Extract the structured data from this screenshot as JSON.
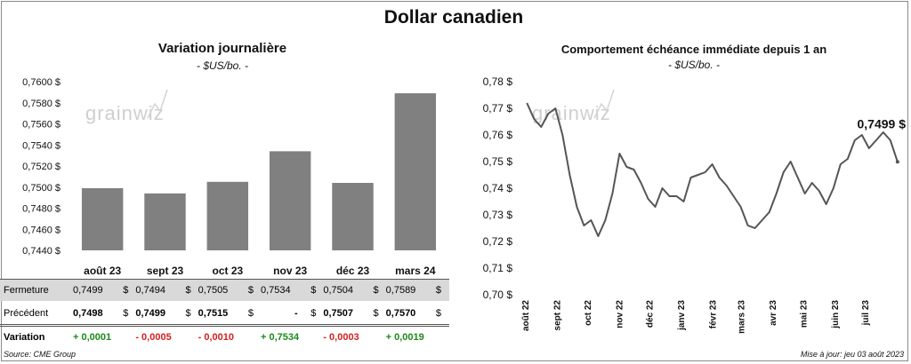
{
  "main_title": "Dollar canadien",
  "left_chart": {
    "title": "Variation  journalière",
    "subtitle": "- $US/bo. -",
    "watermark": "grainwiz",
    "bar_color": "#808080"
  },
  "right_chart": {
    "title": "Comportement échéance immédiate depuis 1 an",
    "subtitle": "- $US/bo. -",
    "last_label": "0,7499 $",
    "watermark": "grainwiz",
    "line_color": "#555555"
  },
  "table": {
    "fermeture_label": "Fermeture",
    "precedent_label": "Précédent",
    "variation_label": "Variation",
    "currency": "$",
    "fermeture": [
      "0,7499",
      "0,7494",
      "0,7505",
      "0,7534",
      "0,7504",
      "0,7589"
    ],
    "precedent": [
      "0,7498",
      "0,7499",
      "0,7515",
      "-",
      "0,7507",
      "0,7570"
    ],
    "variation": [
      "+ 0,0001",
      "- 0,0005",
      "- 0,0010",
      "+ 0,7534",
      "- 0,0003",
      "+ 0,0019"
    ]
  },
  "footer": {
    "source": "Source: CME Group",
    "updated": "Mise à jour: jeu 03 août 2023"
  },
  "chart_data": [
    {
      "type": "bar",
      "title": "Variation  journalière",
      "subtitle": "- $US/bo. -",
      "categories": [
        "août 23",
        "sept 23",
        "oct 23",
        "nov 23",
        "déc 23",
        "mars 24"
      ],
      "values": [
        0.7499,
        0.7494,
        0.7505,
        0.7534,
        0.7504,
        0.7589
      ],
      "ylim": [
        0.744,
        0.76
      ],
      "yticks": [
        "0,7440 $",
        "0,7460 $",
        "0,7480 $",
        "0,7500 $",
        "0,7520 $",
        "0,7540 $",
        "0,7560 $",
        "0,7580 $",
        "0,7600 $"
      ],
      "grid": false,
      "legend": "none"
    },
    {
      "type": "line",
      "title": "Comportement échéance immédiate depuis 1 an",
      "subtitle": "- $US/bo. -",
      "ylim": [
        0.7,
        0.78
      ],
      "yticks": [
        "0,70 $",
        "0,71 $",
        "0,72 $",
        "0,73 $",
        "0,74 $",
        "0,75 $",
        "0,76 $",
        "0,77 $",
        "0,78 $"
      ],
      "xticks": [
        "août 22",
        "sept 22",
        "oct 22",
        "nov 22",
        "déc 22",
        "janv 23",
        "févr 23",
        "mars 23",
        "avr 23",
        "mai 23",
        "juin 23",
        "juil 23"
      ],
      "x": [
        "2022-08-03",
        "2022-08-10",
        "2022-08-17",
        "2022-08-24",
        "2022-08-31",
        "2022-09-07",
        "2022-09-14",
        "2022-09-21",
        "2022-09-28",
        "2022-10-05",
        "2022-10-12",
        "2022-10-19",
        "2022-10-26",
        "2022-11-02",
        "2022-11-09",
        "2022-11-16",
        "2022-11-23",
        "2022-11-30",
        "2022-12-07",
        "2022-12-14",
        "2022-12-21",
        "2022-12-28",
        "2023-01-04",
        "2023-01-11",
        "2023-01-18",
        "2023-01-25",
        "2023-02-01",
        "2023-02-08",
        "2023-02-15",
        "2023-02-22",
        "2023-03-01",
        "2023-03-08",
        "2023-03-15",
        "2023-03-22",
        "2023-03-29",
        "2023-04-05",
        "2023-04-12",
        "2023-04-19",
        "2023-04-26",
        "2023-05-03",
        "2023-05-10",
        "2023-05-17",
        "2023-05-24",
        "2023-05-31",
        "2023-06-07",
        "2023-06-14",
        "2023-06-21",
        "2023-06-28",
        "2023-07-05",
        "2023-07-12",
        "2023-07-19",
        "2023-07-26",
        "2023-08-02"
      ],
      "values": [
        0.772,
        0.766,
        0.763,
        0.768,
        0.77,
        0.76,
        0.745,
        0.733,
        0.726,
        0.728,
        0.722,
        0.728,
        0.738,
        0.753,
        0.748,
        0.747,
        0.742,
        0.736,
        0.733,
        0.74,
        0.737,
        0.737,
        0.735,
        0.744,
        0.745,
        0.746,
        0.749,
        0.744,
        0.741,
        0.737,
        0.733,
        0.726,
        0.725,
        0.728,
        0.731,
        0.738,
        0.746,
        0.75,
        0.744,
        0.738,
        0.742,
        0.739,
        0.734,
        0.74,
        0.749,
        0.751,
        0.758,
        0.76,
        0.755,
        0.758,
        0.761,
        0.758,
        0.7499
      ],
      "last_label": "0,7499 $",
      "grid": false,
      "legend": "none"
    }
  ]
}
